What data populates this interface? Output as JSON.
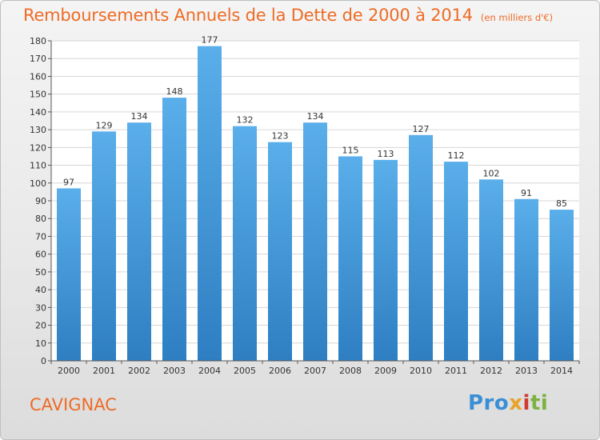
{
  "chart_data": {
    "type": "bar",
    "title": "Remboursements Annuels de la Dette de 2000 à 2014",
    "unit_label": "(en milliers d'€)",
    "categories": [
      "2000",
      "2001",
      "2002",
      "2003",
      "2004",
      "2005",
      "2006",
      "2007",
      "2008",
      "2009",
      "2010",
      "2011",
      "2012",
      "2013",
      "2014"
    ],
    "values": [
      97,
      129,
      134,
      148,
      177,
      132,
      123,
      134,
      115,
      113,
      127,
      112,
      102,
      91,
      85
    ],
    "ylim": [
      0,
      180
    ],
    "yticks": [
      0,
      10,
      20,
      30,
      40,
      50,
      60,
      70,
      80,
      90,
      100,
      110,
      120,
      130,
      140,
      150,
      160,
      170,
      180
    ],
    "grid": true,
    "bar_color_top": "#5aaeea",
    "bar_color_bottom": "#2e7fc2"
  },
  "footer": {
    "place": "CAVIGNAC",
    "logo": [
      "Pro",
      "x",
      "i",
      "ti"
    ]
  },
  "colors": {
    "title": "#ee6b25",
    "grid": "#d6d6d6"
  }
}
